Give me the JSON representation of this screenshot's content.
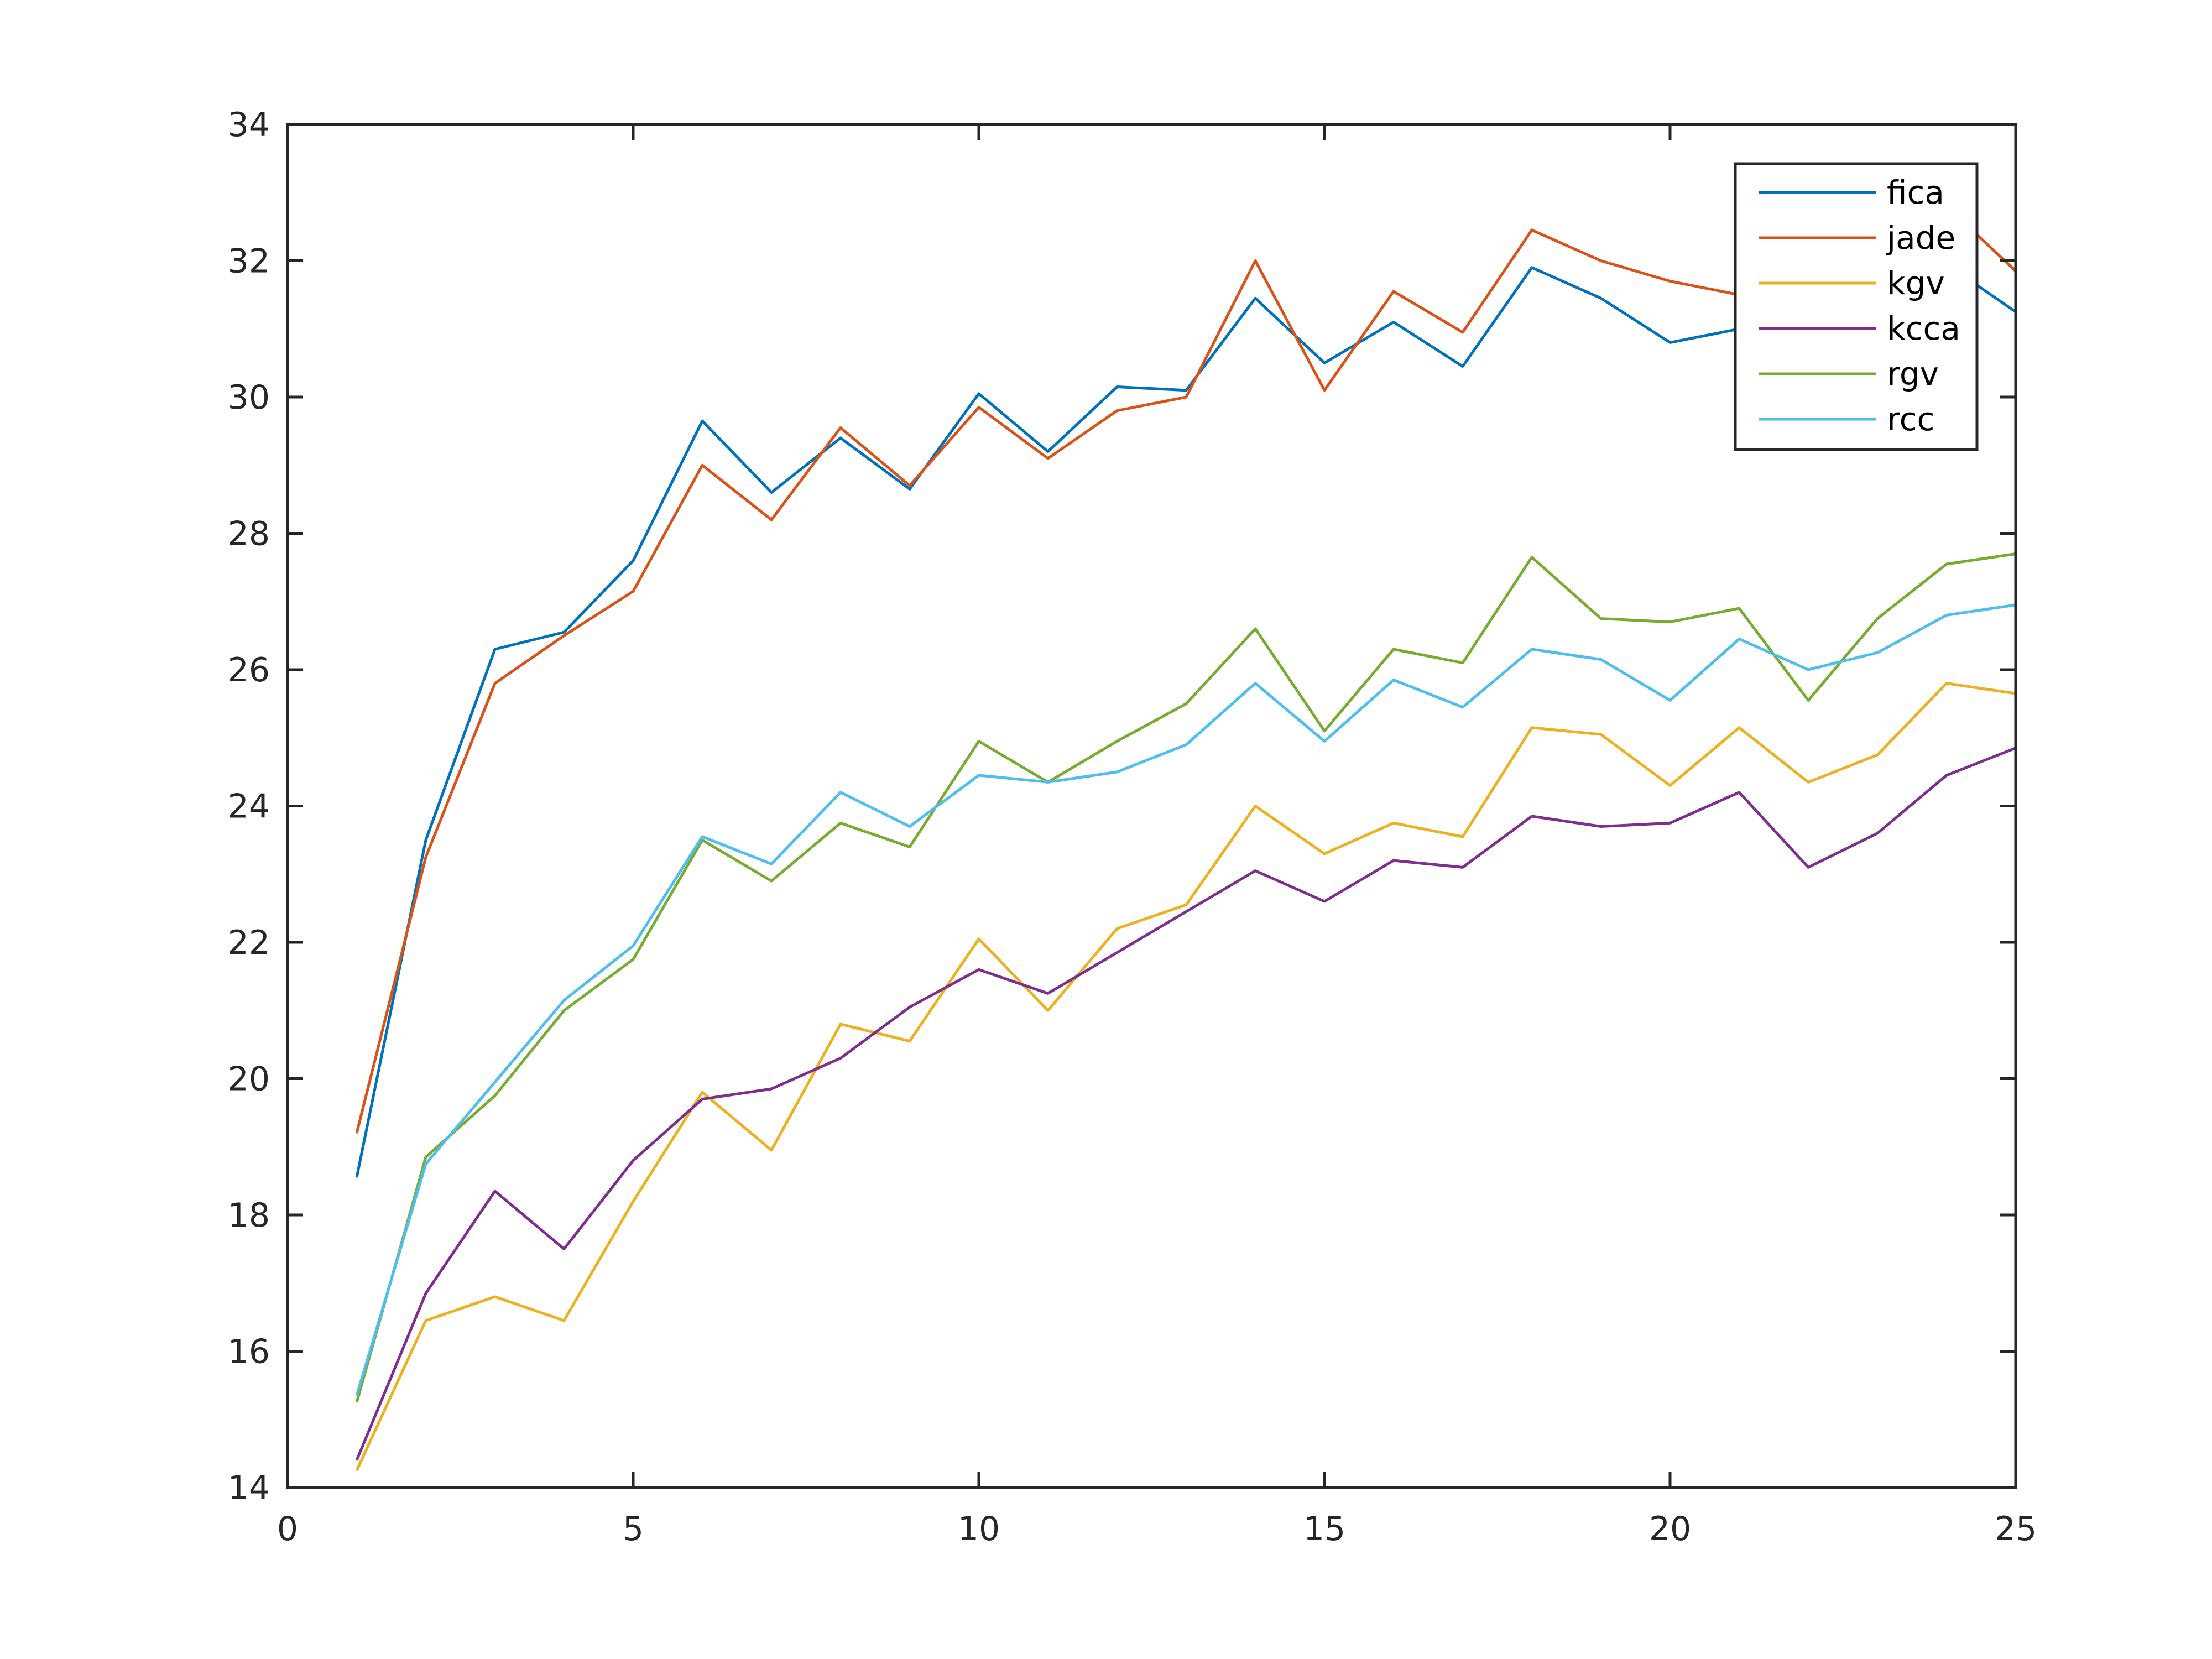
{
  "chart_data": {
    "type": "line",
    "title": "",
    "xlabel": "",
    "ylabel": "",
    "xlim": [
      0,
      25
    ],
    "ylim": [
      14,
      34
    ],
    "xticks": [
      0,
      5,
      10,
      15,
      20,
      25
    ],
    "yticks": [
      14,
      16,
      18,
      20,
      22,
      24,
      26,
      28,
      30,
      32,
      34
    ],
    "grid": false,
    "legend_position": "top-right",
    "x": [
      1,
      2,
      3,
      4,
      5,
      6,
      7,
      8,
      9,
      10,
      11,
      12,
      13,
      14,
      15,
      16,
      17,
      18,
      19,
      20,
      21,
      22,
      23,
      24,
      25
    ],
    "series": [
      {
        "name": "fica",
        "color": "#0072BD",
        "values": [
          18.55,
          23.5,
          26.3,
          26.55,
          27.6,
          29.65,
          28.6,
          29.4,
          28.65,
          30.05,
          29.2,
          30.15,
          30.1,
          31.45,
          30.5,
          31.1,
          30.45,
          31.9,
          31.45,
          30.8,
          31.0,
          31.8,
          31.9,
          31.95,
          31.25
        ]
      },
      {
        "name": "jade",
        "color": "#D95319",
        "values": [
          19.2,
          23.25,
          25.8,
          26.5,
          27.15,
          29.0,
          28.2,
          29.55,
          28.7,
          29.85,
          29.1,
          29.8,
          30.0,
          32.0,
          30.1,
          31.55,
          30.95,
          32.45,
          32.0,
          31.7,
          31.5,
          31.9,
          32.0,
          32.8,
          31.85
        ]
      },
      {
        "name": "kgv",
        "color": "#EDB120",
        "values": [
          14.25,
          16.45,
          16.8,
          16.45,
          18.2,
          19.8,
          18.95,
          20.8,
          20.55,
          22.05,
          21.0,
          22.2,
          22.55,
          24.0,
          23.3,
          23.75,
          23.55,
          25.15,
          25.05,
          24.3,
          25.15,
          24.35,
          24.75,
          25.8,
          25.65
        ]
      },
      {
        "name": "kcca",
        "color": "#7E2F8E",
        "values": [
          14.4,
          16.85,
          18.35,
          17.5,
          18.8,
          19.7,
          19.85,
          20.3,
          21.05,
          21.6,
          21.25,
          21.85,
          22.45,
          23.05,
          22.6,
          23.2,
          23.1,
          23.85,
          23.7,
          23.75,
          24.2,
          23.1,
          23.6,
          24.45,
          24.85
        ]
      },
      {
        "name": "rgv",
        "color": "#77AC30",
        "values": [
          15.25,
          18.85,
          19.75,
          21.0,
          21.75,
          23.5,
          22.9,
          23.75,
          23.4,
          24.95,
          24.35,
          24.95,
          25.5,
          26.6,
          25.1,
          26.3,
          26.1,
          27.65,
          26.75,
          26.7,
          26.9,
          25.55,
          26.75,
          27.55,
          27.7
        ]
      },
      {
        "name": "rcc",
        "color": "#4DBEEE",
        "values": [
          15.35,
          18.75,
          19.95,
          21.15,
          21.95,
          23.55,
          23.15,
          24.2,
          23.7,
          24.45,
          24.35,
          24.5,
          24.9,
          25.8,
          24.95,
          25.85,
          25.45,
          26.3,
          26.15,
          25.55,
          26.45,
          26.0,
          26.25,
          26.8,
          26.95
        ]
      }
    ]
  }
}
